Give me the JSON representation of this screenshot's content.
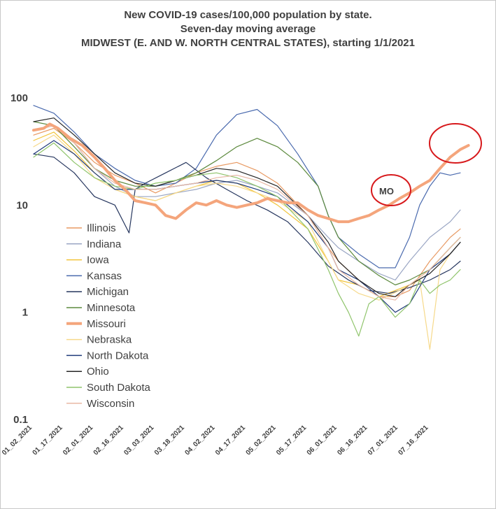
{
  "chart_data": {
    "type": "line",
    "title_lines": [
      "New COVID-19 cases/100,000 population by state.",
      "Seven-day moving average",
      "MIDWEST (E. AND W. NORTH CENTRAL STATES), starting 1/1/2021"
    ],
    "y_scale": "log",
    "ylim": [
      0.1,
      100
    ],
    "y_ticks": [
      "100",
      "10",
      "1",
      "0.1"
    ],
    "x_ticks": [
      "01_02_2021",
      "01_17_2021",
      "02_01_2021",
      "02_16_2021",
      "03_03_2021",
      "03_18_2021",
      "04_02_2021",
      "04_17_2021",
      "05_02_2021",
      "05_17_2021",
      "06_01_2021",
      "06_16_2021",
      "07_01_2021",
      "07_16_2021"
    ],
    "x_day_range": [
      0,
      210
    ],
    "annotation": "MO",
    "series": [
      {
        "name": "Illinois",
        "color": "#e89a63",
        "width": 1.2,
        "values": [
          [
            0,
            45
          ],
          [
            10,
            52
          ],
          [
            20,
            38
          ],
          [
            30,
            25
          ],
          [
            40,
            19
          ],
          [
            50,
            16
          ],
          [
            60,
            13
          ],
          [
            70,
            16
          ],
          [
            80,
            20
          ],
          [
            90,
            23
          ],
          [
            100,
            25
          ],
          [
            110,
            21
          ],
          [
            120,
            16
          ],
          [
            135,
            8
          ],
          [
            145,
            4
          ],
          [
            150,
            3
          ],
          [
            160,
            2.0
          ],
          [
            170,
            1.4
          ],
          [
            178,
            1.4
          ],
          [
            185,
            1.6
          ],
          [
            195,
            3
          ],
          [
            205,
            5
          ],
          [
            210,
            6
          ]
        ]
      },
      {
        "name": "Indiana",
        "color": "#9aa6c4",
        "width": 1.2,
        "values": [
          [
            0,
            50
          ],
          [
            10,
            55
          ],
          [
            20,
            38
          ],
          [
            30,
            22
          ],
          [
            40,
            15
          ],
          [
            50,
            12
          ],
          [
            60,
            12
          ],
          [
            70,
            13
          ],
          [
            80,
            14
          ],
          [
            90,
            16
          ],
          [
            100,
            17
          ],
          [
            110,
            15
          ],
          [
            120,
            13
          ],
          [
            135,
            8
          ],
          [
            145,
            5
          ],
          [
            150,
            4
          ],
          [
            160,
            3
          ],
          [
            170,
            2.3
          ],
          [
            178,
            2.0
          ],
          [
            185,
            3
          ],
          [
            195,
            5
          ],
          [
            205,
            7
          ],
          [
            210,
            9
          ]
        ]
      },
      {
        "name": "Iowa",
        "color": "#f2c43a",
        "width": 1.2,
        "values": [
          [
            0,
            40
          ],
          [
            10,
            48
          ],
          [
            20,
            32
          ],
          [
            30,
            20
          ],
          [
            40,
            14
          ],
          [
            50,
            12
          ],
          [
            60,
            11
          ],
          [
            70,
            13
          ],
          [
            80,
            15
          ],
          [
            90,
            17
          ],
          [
            100,
            16
          ],
          [
            110,
            13
          ],
          [
            120,
            10
          ],
          [
            135,
            6
          ],
          [
            145,
            3
          ],
          [
            150,
            2.0
          ],
          [
            160,
            1.8
          ],
          [
            170,
            1.4
          ],
          [
            178,
            1.6
          ],
          [
            185,
            1.8
          ],
          [
            195,
            2.5
          ],
          [
            205,
            4
          ],
          [
            210,
            5
          ]
        ]
      },
      {
        "name": "Kansas",
        "color": "#4a6aae",
        "width": 1.2,
        "values": [
          [
            0,
            85
          ],
          [
            10,
            72
          ],
          [
            20,
            48
          ],
          [
            30,
            30
          ],
          [
            40,
            22
          ],
          [
            50,
            17
          ],
          [
            60,
            15
          ],
          [
            70,
            16
          ],
          [
            80,
            22
          ],
          [
            90,
            45
          ],
          [
            100,
            70
          ],
          [
            110,
            78
          ],
          [
            120,
            55
          ],
          [
            130,
            30
          ],
          [
            140,
            15
          ],
          [
            145,
            8
          ],
          [
            150,
            5
          ],
          [
            160,
            3.5
          ],
          [
            170,
            2.6
          ],
          [
            178,
            2.6
          ],
          [
            185,
            5
          ],
          [
            190,
            10
          ],
          [
            195,
            15
          ],
          [
            200,
            20
          ],
          [
            205,
            19
          ],
          [
            210,
            20
          ]
        ]
      },
      {
        "name": "Michigan",
        "color": "#26365e",
        "width": 1.2,
        "values": [
          [
            0,
            30
          ],
          [
            10,
            28
          ],
          [
            20,
            20
          ],
          [
            30,
            12
          ],
          [
            40,
            10
          ],
          [
            47,
            5.5
          ],
          [
            50,
            14
          ],
          [
            55,
            16
          ],
          [
            65,
            20
          ],
          [
            75,
            25
          ],
          [
            85,
            18
          ],
          [
            95,
            14
          ],
          [
            105,
            11
          ],
          [
            115,
            9
          ],
          [
            125,
            7
          ],
          [
            135,
            4.5
          ],
          [
            145,
            2.7
          ],
          [
            155,
            2.0
          ],
          [
            165,
            1.6
          ],
          [
            175,
            1.5
          ],
          [
            185,
            1.7
          ],
          [
            195,
            2.0
          ],
          [
            205,
            2.5
          ],
          [
            210,
            3
          ]
        ]
      },
      {
        "name": "Minnesota",
        "color": "#5d8a3e",
        "width": 1.2,
        "values": [
          [
            0,
            60
          ],
          [
            10,
            55
          ],
          [
            20,
            35
          ],
          [
            30,
            22
          ],
          [
            40,
            17
          ],
          [
            50,
            15
          ],
          [
            60,
            15
          ],
          [
            70,
            17
          ],
          [
            80,
            20
          ],
          [
            90,
            26
          ],
          [
            100,
            35
          ],
          [
            110,
            42
          ],
          [
            120,
            35
          ],
          [
            130,
            25
          ],
          [
            140,
            15
          ],
          [
            145,
            8
          ],
          [
            150,
            5
          ],
          [
            160,
            3
          ],
          [
            170,
            2.2
          ],
          [
            178,
            1.8
          ],
          [
            185,
            2.0
          ],
          [
            195,
            2.5
          ],
          [
            205,
            4
          ],
          [
            210,
            5
          ]
        ]
      },
      {
        "name": "Missouri",
        "color": "#f4a57c",
        "width": 4,
        "values": [
          [
            0,
            50
          ],
          [
            5,
            52
          ],
          [
            8,
            57
          ],
          [
            12,
            52
          ],
          [
            18,
            42
          ],
          [
            24,
            36
          ],
          [
            30,
            28
          ],
          [
            35,
            22
          ],
          [
            40,
            17
          ],
          [
            45,
            14
          ],
          [
            50,
            11
          ],
          [
            55,
            10.5
          ],
          [
            60,
            10
          ],
          [
            65,
            8
          ],
          [
            70,
            7.5
          ],
          [
            75,
            9
          ],
          [
            80,
            10.5
          ],
          [
            85,
            10
          ],
          [
            90,
            11
          ],
          [
            95,
            10
          ],
          [
            100,
            9.5
          ],
          [
            105,
            10
          ],
          [
            110,
            10.5
          ],
          [
            115,
            11.5
          ],
          [
            120,
            11
          ],
          [
            125,
            10.5
          ],
          [
            130,
            10.5
          ],
          [
            135,
            9
          ],
          [
            140,
            8
          ],
          [
            145,
            7.5
          ],
          [
            150,
            7
          ],
          [
            155,
            7
          ],
          [
            160,
            7.5
          ],
          [
            165,
            8
          ],
          [
            170,
            9
          ],
          [
            175,
            10
          ],
          [
            180,
            11.5
          ],
          [
            185,
            13
          ],
          [
            190,
            15
          ],
          [
            195,
            17
          ],
          [
            200,
            22
          ],
          [
            205,
            28
          ],
          [
            210,
            33
          ],
          [
            214,
            36
          ]
        ]
      },
      {
        "name": "Nebraska",
        "color": "#f6d98a",
        "width": 1.2,
        "values": [
          [
            0,
            35
          ],
          [
            10,
            45
          ],
          [
            20,
            30
          ],
          [
            30,
            18
          ],
          [
            40,
            14
          ],
          [
            50,
            12
          ],
          [
            60,
            11
          ],
          [
            70,
            13
          ],
          [
            80,
            15
          ],
          [
            90,
            16
          ],
          [
            100,
            15
          ],
          [
            110,
            13
          ],
          [
            120,
            11
          ],
          [
            135,
            7
          ],
          [
            145,
            3
          ],
          [
            150,
            2
          ],
          [
            160,
            1.5
          ],
          [
            170,
            1.3
          ],
          [
            180,
            1.6
          ],
          [
            190,
            2
          ],
          [
            195,
            0.45
          ],
          [
            200,
            2.5
          ],
          [
            205,
            3.5
          ],
          [
            210,
            4.5
          ]
        ]
      },
      {
        "name": "North Dakota",
        "color": "#1f3a7a",
        "width": 1.2,
        "values": [
          [
            0,
            30
          ],
          [
            10,
            40
          ],
          [
            20,
            30
          ],
          [
            30,
            20
          ],
          [
            40,
            14
          ],
          [
            50,
            14
          ],
          [
            60,
            14
          ],
          [
            70,
            15
          ],
          [
            80,
            16
          ],
          [
            90,
            17
          ],
          [
            100,
            16
          ],
          [
            110,
            14
          ],
          [
            120,
            12
          ],
          [
            135,
            7
          ],
          [
            145,
            4
          ],
          [
            150,
            2.5
          ],
          [
            160,
            2
          ],
          [
            170,
            1.4
          ],
          [
            178,
            1.0
          ],
          [
            185,
            1.2
          ],
          [
            195,
            2.5
          ],
          [
            205,
            3.5
          ],
          [
            210,
            4.5
          ]
        ]
      },
      {
        "name": "Ohio",
        "color": "#262626",
        "width": 1.2,
        "values": [
          [
            0,
            60
          ],
          [
            10,
            65
          ],
          [
            20,
            45
          ],
          [
            30,
            30
          ],
          [
            40,
            20
          ],
          [
            50,
            16
          ],
          [
            60,
            15
          ],
          [
            70,
            17
          ],
          [
            80,
            19
          ],
          [
            90,
            22
          ],
          [
            100,
            21
          ],
          [
            110,
            18
          ],
          [
            120,
            15
          ],
          [
            135,
            8
          ],
          [
            145,
            4.5
          ],
          [
            150,
            3
          ],
          [
            160,
            2.0
          ],
          [
            170,
            1.5
          ],
          [
            178,
            1.4
          ],
          [
            185,
            1.8
          ],
          [
            195,
            2.3
          ],
          [
            205,
            3.5
          ],
          [
            210,
            4.5
          ]
        ]
      },
      {
        "name": "South Dakota",
        "color": "#8fc46b",
        "width": 1.2,
        "values": [
          [
            0,
            28
          ],
          [
            10,
            38
          ],
          [
            20,
            25
          ],
          [
            30,
            18
          ],
          [
            40,
            15
          ],
          [
            50,
            14
          ],
          [
            60,
            16
          ],
          [
            70,
            17
          ],
          [
            80,
            19
          ],
          [
            90,
            20
          ],
          [
            100,
            18
          ],
          [
            110,
            15
          ],
          [
            120,
            12
          ],
          [
            135,
            6
          ],
          [
            145,
            2.5
          ],
          [
            150,
            1.5
          ],
          [
            155,
            1.0
          ],
          [
            160,
            0.6
          ],
          [
            165,
            1.2
          ],
          [
            170,
            1.4
          ],
          [
            178,
            0.9
          ],
          [
            185,
            1.2
          ],
          [
            190,
            2
          ],
          [
            195,
            1.5
          ],
          [
            200,
            1.8
          ],
          [
            205,
            2.0
          ],
          [
            210,
            2.5
          ]
        ]
      },
      {
        "name": "Wisconsin",
        "color": "#e8b8a5",
        "width": 1.2,
        "values": [
          [
            0,
            50
          ],
          [
            10,
            55
          ],
          [
            20,
            38
          ],
          [
            30,
            22
          ],
          [
            40,
            16
          ],
          [
            50,
            14
          ],
          [
            60,
            14
          ],
          [
            70,
            15
          ],
          [
            80,
            16
          ],
          [
            90,
            18
          ],
          [
            100,
            19
          ],
          [
            110,
            17
          ],
          [
            120,
            14
          ],
          [
            135,
            8
          ],
          [
            145,
            4
          ],
          [
            150,
            2.5
          ],
          [
            160,
            1.8
          ],
          [
            170,
            1.4
          ],
          [
            178,
            1.3
          ],
          [
            185,
            1.8
          ],
          [
            195,
            2.5
          ],
          [
            205,
            4
          ],
          [
            210,
            5
          ]
        ]
      }
    ]
  }
}
